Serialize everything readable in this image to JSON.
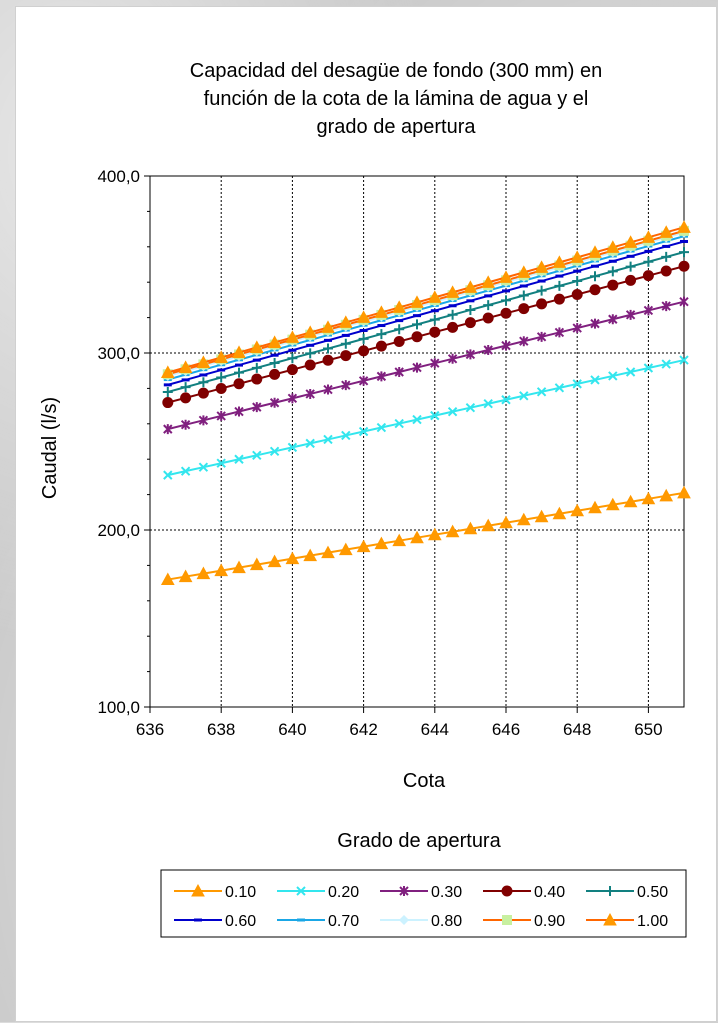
{
  "chart_data": {
    "type": "line",
    "title_lines": [
      "Capacidad del desagüe de fondo (300 mm) en",
      "función de la cota de la lámina de agua y el",
      "grado de apertura"
    ],
    "xlabel": "Cota",
    "ylabel": "Caudal (l/s)",
    "xlim": [
      636,
      651
    ],
    "ylim": [
      100,
      400
    ],
    "x_ticks": [
      "636",
      "638",
      "640",
      "642",
      "644",
      "646",
      "648",
      "650"
    ],
    "x_tick_values": [
      636,
      638,
      640,
      642,
      644,
      646,
      648,
      650
    ],
    "y_ticks": [
      "100,0",
      "200,0",
      "300,0",
      "400,0"
    ],
    "y_tick_values": [
      100,
      200,
      300,
      400
    ],
    "grid": "horizontal dashed at major ticks, vertical dashed at x ticks",
    "legend_title": "Grado de apertura",
    "legend_position": "bottom",
    "x_start": 636.5,
    "x_step": 0.5,
    "n_points": 30,
    "series": [
      {
        "name": "0.10",
        "color": "#ff9900",
        "marker": "triangle",
        "y_start": 172,
        "y_end": 221
      },
      {
        "name": "0.20",
        "color": "#33e6ee",
        "marker": "x",
        "y_start": 231,
        "y_end": 296
      },
      {
        "name": "0.30",
        "color": "#80207f",
        "marker": "star",
        "y_start": 257,
        "y_end": 329
      },
      {
        "name": "0.40",
        "color": "#800000",
        "marker": "circle",
        "y_start": 272,
        "y_end": 349
      },
      {
        "name": "0.50",
        "color": "#128080",
        "marker": "plus",
        "y_start": 278,
        "y_end": 357
      },
      {
        "name": "0.60",
        "color": "#0000cc",
        "marker": "dash",
        "y_start": 282,
        "y_end": 363
      },
      {
        "name": "0.70",
        "color": "#1aa7e6",
        "marker": "dash",
        "y_start": 285,
        "y_end": 366
      },
      {
        "name": "0.80",
        "color": "#ccf2ff",
        "marker": "diamond",
        "y_start": 287,
        "y_end": 368
      },
      {
        "name": "0.90",
        "color": "#ff6600",
        "marker": "square",
        "square_color": "#c8f0a0",
        "y_start": 288,
        "y_end": 369
      },
      {
        "name": "1.00",
        "color": "#ff6600",
        "marker": "triangle",
        "triangle_color": "#ff9900",
        "y_start": 289,
        "y_end": 371
      }
    ]
  }
}
